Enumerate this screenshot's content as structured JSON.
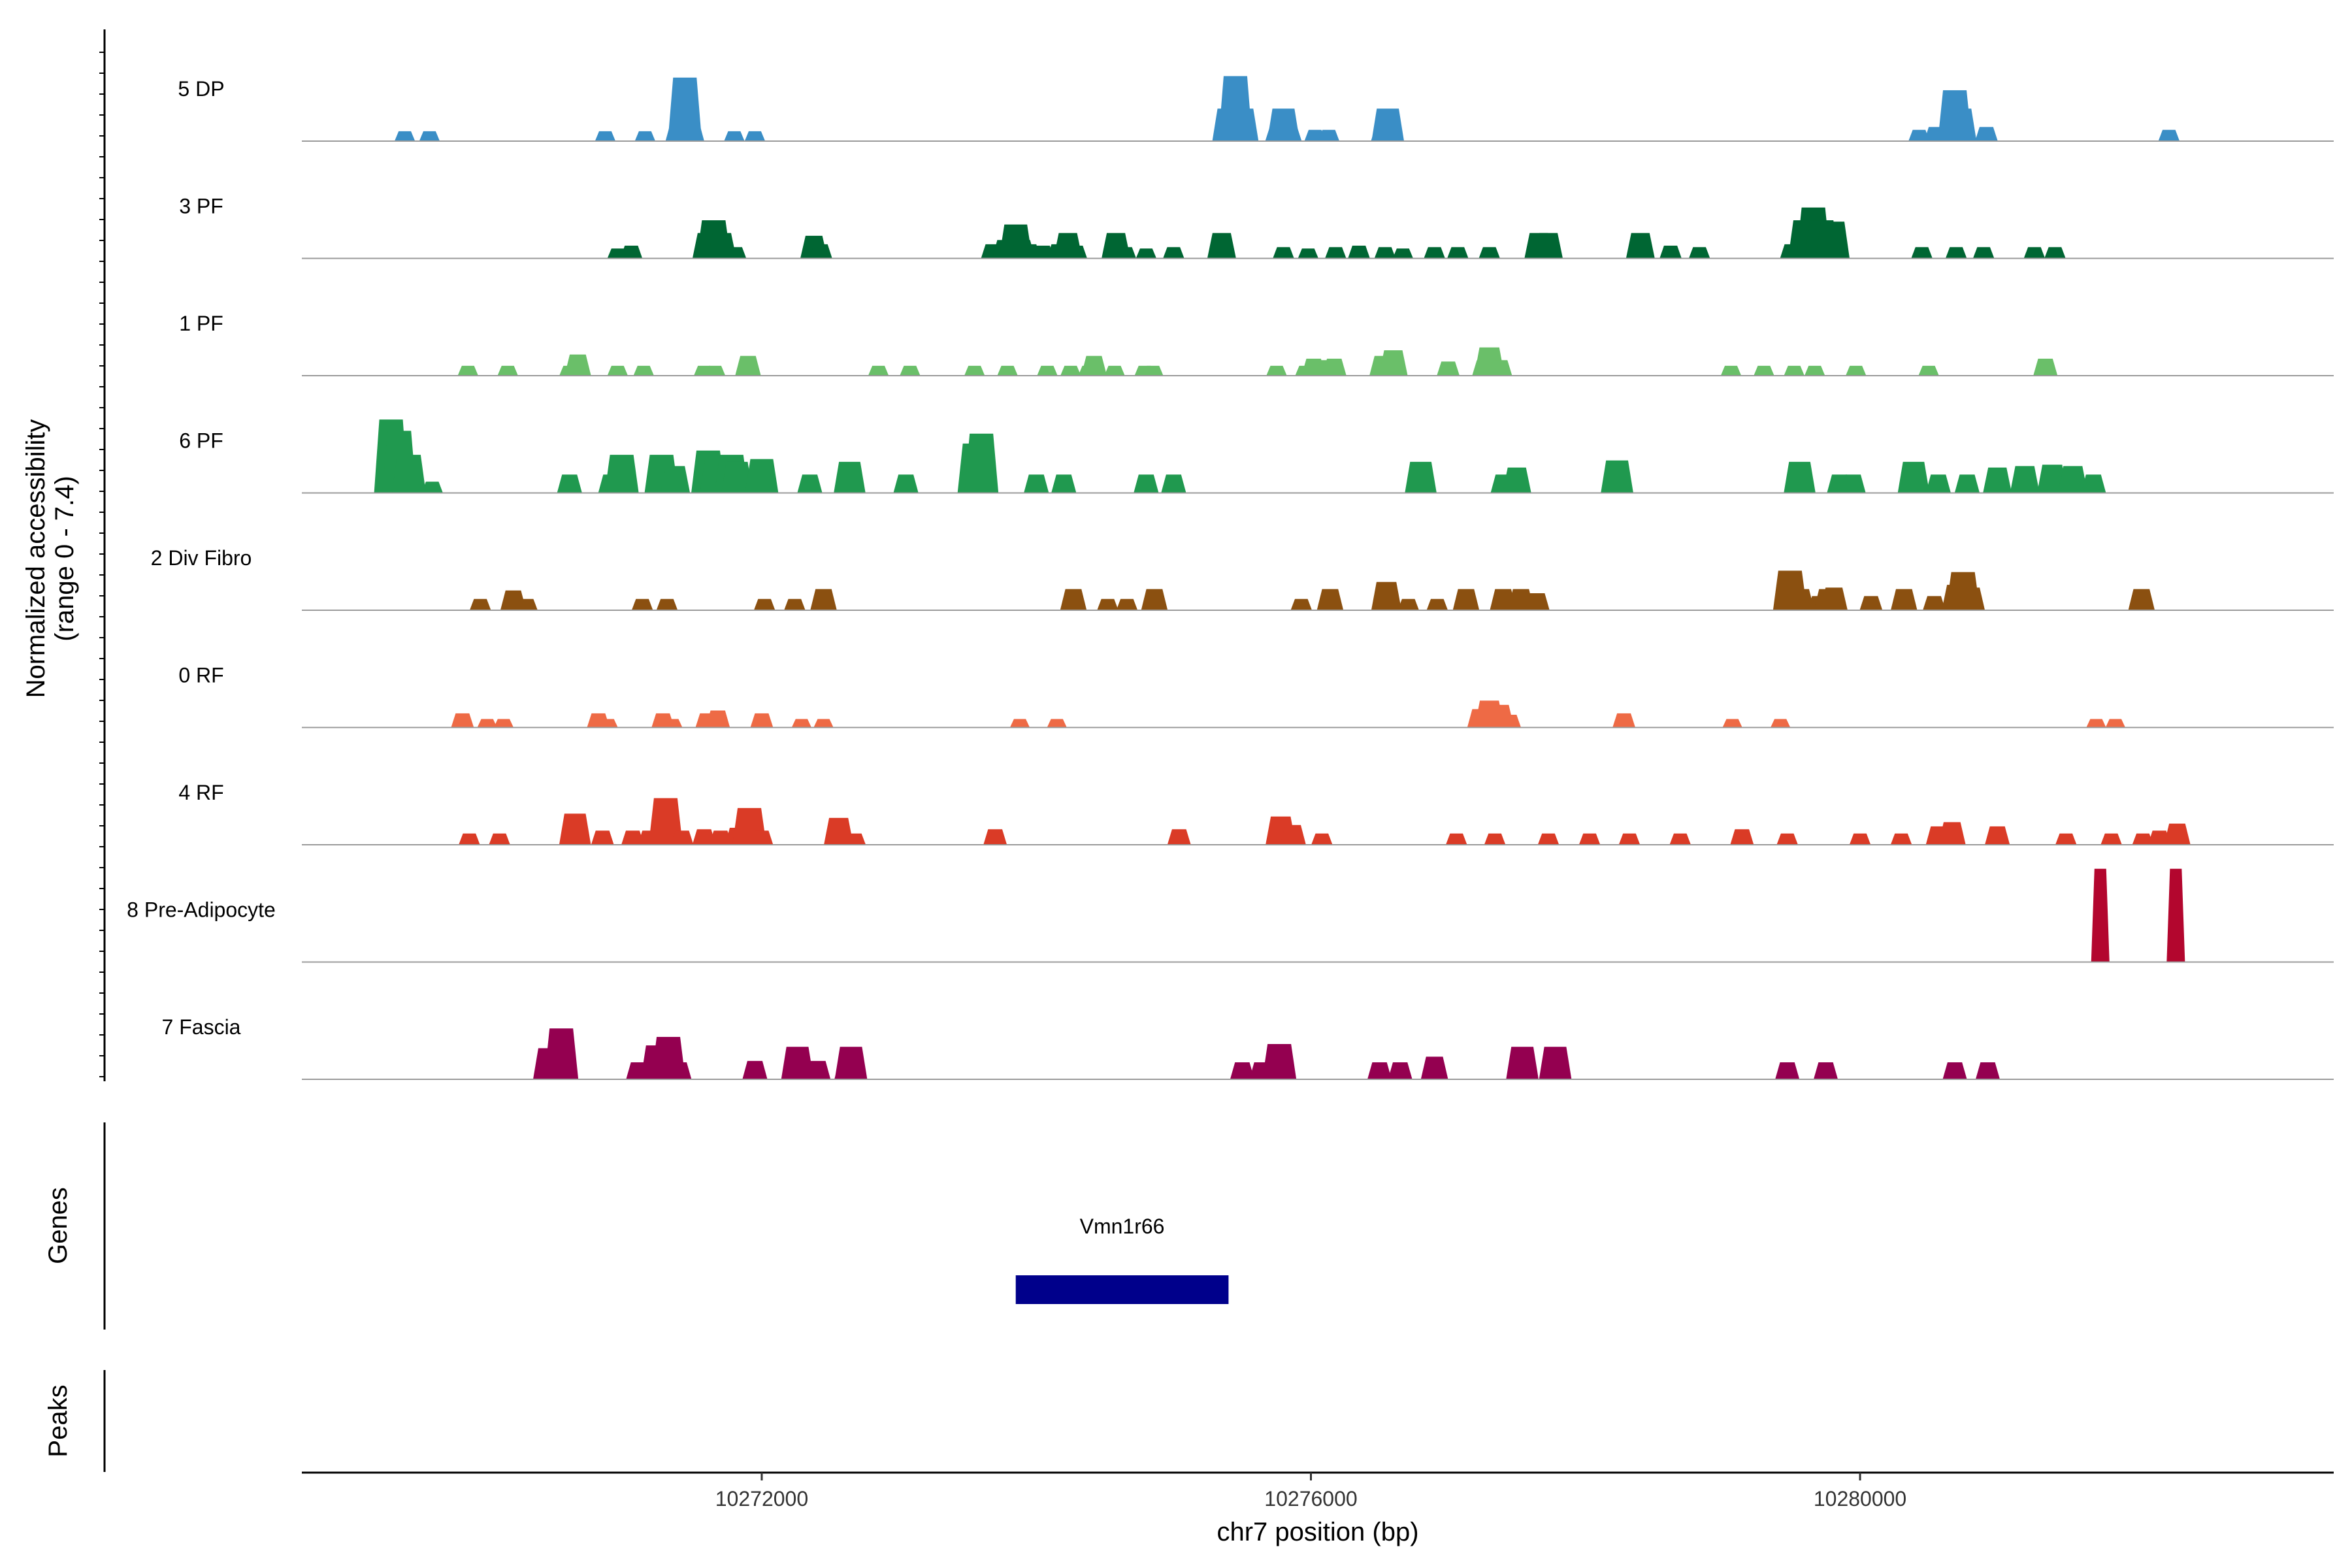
{
  "chart_data": {
    "type": "area",
    "title": "",
    "region": {
      "chrom": "chr7",
      "start": 10268650,
      "end": 10283450
    },
    "xlabel": "chr7 position (bp)",
    "ylabel_line1": "Normalized accessibility",
    "ylabel_line2": "(range 0 - 7.4)",
    "ylim": [
      0,
      7.4
    ],
    "x_ticks": [
      {
        "value": 10272000,
        "label": "10272000"
      },
      {
        "value": 10276000,
        "label": "10276000"
      },
      {
        "value": 10280000,
        "label": "10280000"
      }
    ],
    "tracks": [
      {
        "name": "5 DP",
        "color": "#3a8ec6",
        "peaks": [
          [
            10269400,
            0.7
          ],
          [
            10269580,
            0.7
          ],
          [
            10270860,
            0.7
          ],
          [
            10271150,
            0.7
          ],
          [
            10271390,
            1.3
          ],
          [
            10271440,
            4.5
          ],
          [
            10271490,
            1.3
          ],
          [
            10271800,
            0.7
          ],
          [
            10271950,
            0.7
          ],
          [
            10275400,
            2.3
          ],
          [
            10275450,
            4.6
          ],
          [
            10275500,
            2.3
          ],
          [
            10275750,
            1.0
          ],
          [
            10275800,
            2.3
          ],
          [
            10275850,
            1.0
          ],
          [
            10276030,
            0.8
          ],
          [
            10276130,
            0.8
          ],
          [
            10276520,
            1.0
          ],
          [
            10276560,
            2.3
          ],
          [
            10280430,
            0.8
          ],
          [
            10280550,
            1.0
          ],
          [
            10280650,
            1.0
          ],
          [
            10280690,
            3.6
          ],
          [
            10280730,
            2.3
          ],
          [
            10280920,
            1.0
          ],
          [
            10282250,
            0.8
          ]
        ]
      },
      {
        "name": "3 PF",
        "color": "#006633",
        "peaks": [
          [
            10270950,
            0.7
          ],
          [
            10271050,
            0.9
          ],
          [
            10271600,
            1.8
          ],
          [
            10271650,
            2.7
          ],
          [
            10271710,
            1.8
          ],
          [
            10271810,
            0.8
          ],
          [
            10272380,
            1.6
          ],
          [
            10272430,
            1.0
          ],
          [
            10273680,
            1.0
          ],
          [
            10273770,
            1.3
          ],
          [
            10273850,
            2.4
          ],
          [
            10273900,
            1.3
          ],
          [
            10273950,
            1.0
          ],
          [
            10274050,
            0.9
          ],
          [
            10274160,
            1.0
          ],
          [
            10274230,
            1.8
          ],
          [
            10274290,
            0.9
          ],
          [
            10274580,
            1.8
          ],
          [
            10274650,
            0.8
          ],
          [
            10274800,
            0.7
          ],
          [
            10275000,
            0.8
          ],
          [
            10275350,
            1.8
          ],
          [
            10275800,
            0.8
          ],
          [
            10275980,
            0.7
          ],
          [
            10276180,
            0.8
          ],
          [
            10276350,
            0.9
          ],
          [
            10276540,
            0.8
          ],
          [
            10276670,
            0.7
          ],
          [
            10276900,
            0.8
          ],
          [
            10277070,
            0.8
          ],
          [
            10277300,
            0.8
          ],
          [
            10277660,
            1.8
          ],
          [
            10277730,
            1.8
          ],
          [
            10278400,
            1.8
          ],
          [
            10278620,
            0.9
          ],
          [
            10278830,
            0.8
          ],
          [
            10279500,
            1.0
          ],
          [
            10279600,
            2.7
          ],
          [
            10279660,
            3.6
          ],
          [
            10279720,
            2.7
          ],
          [
            10279800,
            2.6
          ],
          [
            10280450,
            0.8
          ],
          [
            10280700,
            0.8
          ],
          [
            10280900,
            0.8
          ],
          [
            10281270,
            0.8
          ],
          [
            10281420,
            0.8
          ]
        ]
      },
      {
        "name": "1 PF",
        "color": "#6abf69",
        "peaks": [
          [
            10269860,
            0.7
          ],
          [
            10270150,
            0.7
          ],
          [
            10270600,
            0.7
          ],
          [
            10270660,
            1.5
          ],
          [
            10270950,
            0.7
          ],
          [
            10271140,
            0.7
          ],
          [
            10271580,
            0.7
          ],
          [
            10271660,
            0.7
          ],
          [
            10271900,
            1.4
          ],
          [
            10272850,
            0.7
          ],
          [
            10273080,
            0.7
          ],
          [
            10273550,
            0.7
          ],
          [
            10273790,
            0.7
          ],
          [
            10274080,
            0.7
          ],
          [
            10274250,
            0.7
          ],
          [
            10274380,
            0.7
          ],
          [
            10274420,
            1.4
          ],
          [
            10274570,
            0.7
          ],
          [
            10274790,
            0.7
          ],
          [
            10274850,
            0.7
          ],
          [
            10275750,
            0.7
          ],
          [
            10275960,
            0.7
          ],
          [
            10276020,
            1.2
          ],
          [
            10276120,
            1.1
          ],
          [
            10276170,
            1.2
          ],
          [
            10276520,
            1.4
          ],
          [
            10276600,
            1.8
          ],
          [
            10277000,
            1.0
          ],
          [
            10277260,
            1.1
          ],
          [
            10277300,
            2.0
          ],
          [
            10277380,
            1.1
          ],
          [
            10279060,
            0.7
          ],
          [
            10279300,
            0.7
          ],
          [
            10279520,
            0.7
          ],
          [
            10279670,
            0.7
          ],
          [
            10279970,
            0.7
          ],
          [
            10280500,
            0.7
          ],
          [
            10281350,
            1.2
          ]
        ]
      },
      {
        "name": "6 PF",
        "color": "#20994f",
        "peaks": [
          [
            10269300,
            5.2
          ],
          [
            10269360,
            4.4
          ],
          [
            10269430,
            2.7
          ],
          [
            10269600,
            0.8
          ],
          [
            10270600,
            1.3
          ],
          [
            10270900,
            1.3
          ],
          [
            10270980,
            2.7
          ],
          [
            10271270,
            2.7
          ],
          [
            10271370,
            1.9
          ],
          [
            10271610,
            3.0
          ],
          [
            10271670,
            2.4
          ],
          [
            10271780,
            2.7
          ],
          [
            10271820,
            2.2
          ],
          [
            10272000,
            2.4
          ],
          [
            10272350,
            1.3
          ],
          [
            10272640,
            2.2
          ],
          [
            10273050,
            1.3
          ],
          [
            10273550,
            3.5
          ],
          [
            10273600,
            4.2
          ],
          [
            10274000,
            1.3
          ],
          [
            10274200,
            1.3
          ],
          [
            10274800,
            1.3
          ],
          [
            10275000,
            1.3
          ],
          [
            10276800,
            2.2
          ],
          [
            10277400,
            1.3
          ],
          [
            10277500,
            1.8
          ],
          [
            10278230,
            2.3
          ],
          [
            10279560,
            2.2
          ],
          [
            10279850,
            1.3
          ],
          [
            10279950,
            1.3
          ],
          [
            10280390,
            2.2
          ],
          [
            10280570,
            1.3
          ],
          [
            10280780,
            1.3
          ],
          [
            10281000,
            1.8
          ],
          [
            10281200,
            1.9
          ],
          [
            10281400,
            2.0
          ],
          [
            10281550,
            1.9
          ],
          [
            10281700,
            1.3
          ]
        ]
      },
      {
        "name": "2 Div Fibro",
        "color": "#8b5010",
        "peaks": [
          [
            10269950,
            0.8
          ],
          [
            10270190,
            1.4
          ],
          [
            10270290,
            0.8
          ],
          [
            10271130,
            0.8
          ],
          [
            10271310,
            0.8
          ],
          [
            10272020,
            0.8
          ],
          [
            10272240,
            0.8
          ],
          [
            10272450,
            1.5
          ],
          [
            10274270,
            1.5
          ],
          [
            10274520,
            0.8
          ],
          [
            10274660,
            0.8
          ],
          [
            10274860,
            1.5
          ],
          [
            10275930,
            0.8
          ],
          [
            10276140,
            1.5
          ],
          [
            10276550,
            2.0
          ],
          [
            10276710,
            0.8
          ],
          [
            10276920,
            0.8
          ],
          [
            10277130,
            1.5
          ],
          [
            10277400,
            1.5
          ],
          [
            10277530,
            1.5
          ],
          [
            10277650,
            1.2
          ],
          [
            10279490,
            2.8
          ],
          [
            10279570,
            1.5
          ],
          [
            10279700,
            1.0
          ],
          [
            10279760,
            1.5
          ],
          [
            10279810,
            1.6
          ],
          [
            10280080,
            1.0
          ],
          [
            10280320,
            1.5
          ],
          [
            10280540,
            1.0
          ],
          [
            10280700,
            1.8
          ],
          [
            10280750,
            2.7
          ],
          [
            10280810,
            1.6
          ],
          [
            10282050,
            1.5
          ]
        ]
      },
      {
        "name": "0 RF",
        "color": "#ee6a45",
        "peaks": [
          [
            10269820,
            1.0
          ],
          [
            10270000,
            0.6
          ],
          [
            10270120,
            0.6
          ],
          [
            10270810,
            1.0
          ],
          [
            10270880,
            0.6
          ],
          [
            10271280,
            1.0
          ],
          [
            10271350,
            0.6
          ],
          [
            10271600,
            1.0
          ],
          [
            10271680,
            1.2
          ],
          [
            10272000,
            1.0
          ],
          [
            10272290,
            0.6
          ],
          [
            10272450,
            0.6
          ],
          [
            10273880,
            0.6
          ],
          [
            10274150,
            0.6
          ],
          [
            10277230,
            1.3
          ],
          [
            10277300,
            1.9
          ],
          [
            10277380,
            1.6
          ],
          [
            10277450,
            0.9
          ],
          [
            10278280,
            1.0
          ],
          [
            10279070,
            0.6
          ],
          [
            10279420,
            0.6
          ],
          [
            10281720,
            0.6
          ],
          [
            10281860,
            0.6
          ]
        ]
      },
      {
        "name": "4 RF",
        "color": "#da3b26",
        "peaks": [
          [
            10269870,
            0.8
          ],
          [
            10270090,
            0.8
          ],
          [
            10270640,
            2.2
          ],
          [
            10270840,
            1.0
          ],
          [
            10271060,
            1.0
          ],
          [
            10271180,
            1.0
          ],
          [
            10271300,
            3.3
          ],
          [
            10271420,
            1.0
          ],
          [
            10271580,
            1.1
          ],
          [
            10271700,
            1.0
          ],
          [
            10271820,
            1.2
          ],
          [
            10271910,
            2.6
          ],
          [
            10272000,
            1.0
          ],
          [
            10272560,
            1.9
          ],
          [
            10272680,
            0.8
          ],
          [
            10273700,
            1.1
          ],
          [
            10275040,
            1.1
          ],
          [
            10275780,
            2.0
          ],
          [
            10275870,
            1.4
          ],
          [
            10276080,
            0.8
          ],
          [
            10277060,
            0.8
          ],
          [
            10277340,
            0.8
          ],
          [
            10277730,
            0.8
          ],
          [
            10278030,
            0.8
          ],
          [
            10278320,
            0.8
          ],
          [
            10278690,
            0.8
          ],
          [
            10279140,
            1.1
          ],
          [
            10279470,
            0.8
          ],
          [
            10280000,
            0.8
          ],
          [
            10280300,
            0.8
          ],
          [
            10280570,
            1.3
          ],
          [
            10280670,
            1.6
          ],
          [
            10281000,
            1.3
          ],
          [
            10281500,
            0.8
          ],
          [
            10281830,
            0.8
          ],
          [
            10282060,
            0.8
          ],
          [
            10282180,
            1.0
          ],
          [
            10282310,
            1.5
          ]
        ]
      },
      {
        "name": "8 Pre-Adipocyte",
        "color": "#b3062e",
        "peaks": [
          [
            10281750,
            6.6
          ],
          [
            10282300,
            6.6
          ]
        ]
      },
      {
        "name": "7 Fascia",
        "color": "#940050",
        "peaks": [
          [
            10270450,
            2.2
          ],
          [
            10270540,
            3.6
          ],
          [
            10271100,
            1.2
          ],
          [
            10271240,
            2.4
          ],
          [
            10271320,
            3.0
          ],
          [
            10271400,
            1.2
          ],
          [
            10271950,
            1.3
          ],
          [
            10272260,
            2.3
          ],
          [
            10272410,
            1.3
          ],
          [
            10272620,
            1.3
          ],
          [
            10272650,
            2.3
          ],
          [
            10275500,
            1.2
          ],
          [
            10275640,
            1.2
          ],
          [
            10275770,
            2.5
          ],
          [
            10276500,
            1.2
          ],
          [
            10276650,
            1.2
          ],
          [
            10276900,
            1.6
          ],
          [
            10277540,
            2.3
          ],
          [
            10277780,
            2.3
          ],
          [
            10279470,
            1.2
          ],
          [
            10279750,
            1.2
          ],
          [
            10280690,
            1.2
          ],
          [
            10280930,
            1.2
          ]
        ]
      }
    ],
    "genes_track": {
      "label": "Genes",
      "genes": [
        {
          "name": "Vmn1r66",
          "start": 10273850,
          "end": 10275400,
          "color": "#00008b"
        }
      ]
    },
    "peaks_track": {
      "label": "Peaks",
      "peaks": []
    }
  }
}
